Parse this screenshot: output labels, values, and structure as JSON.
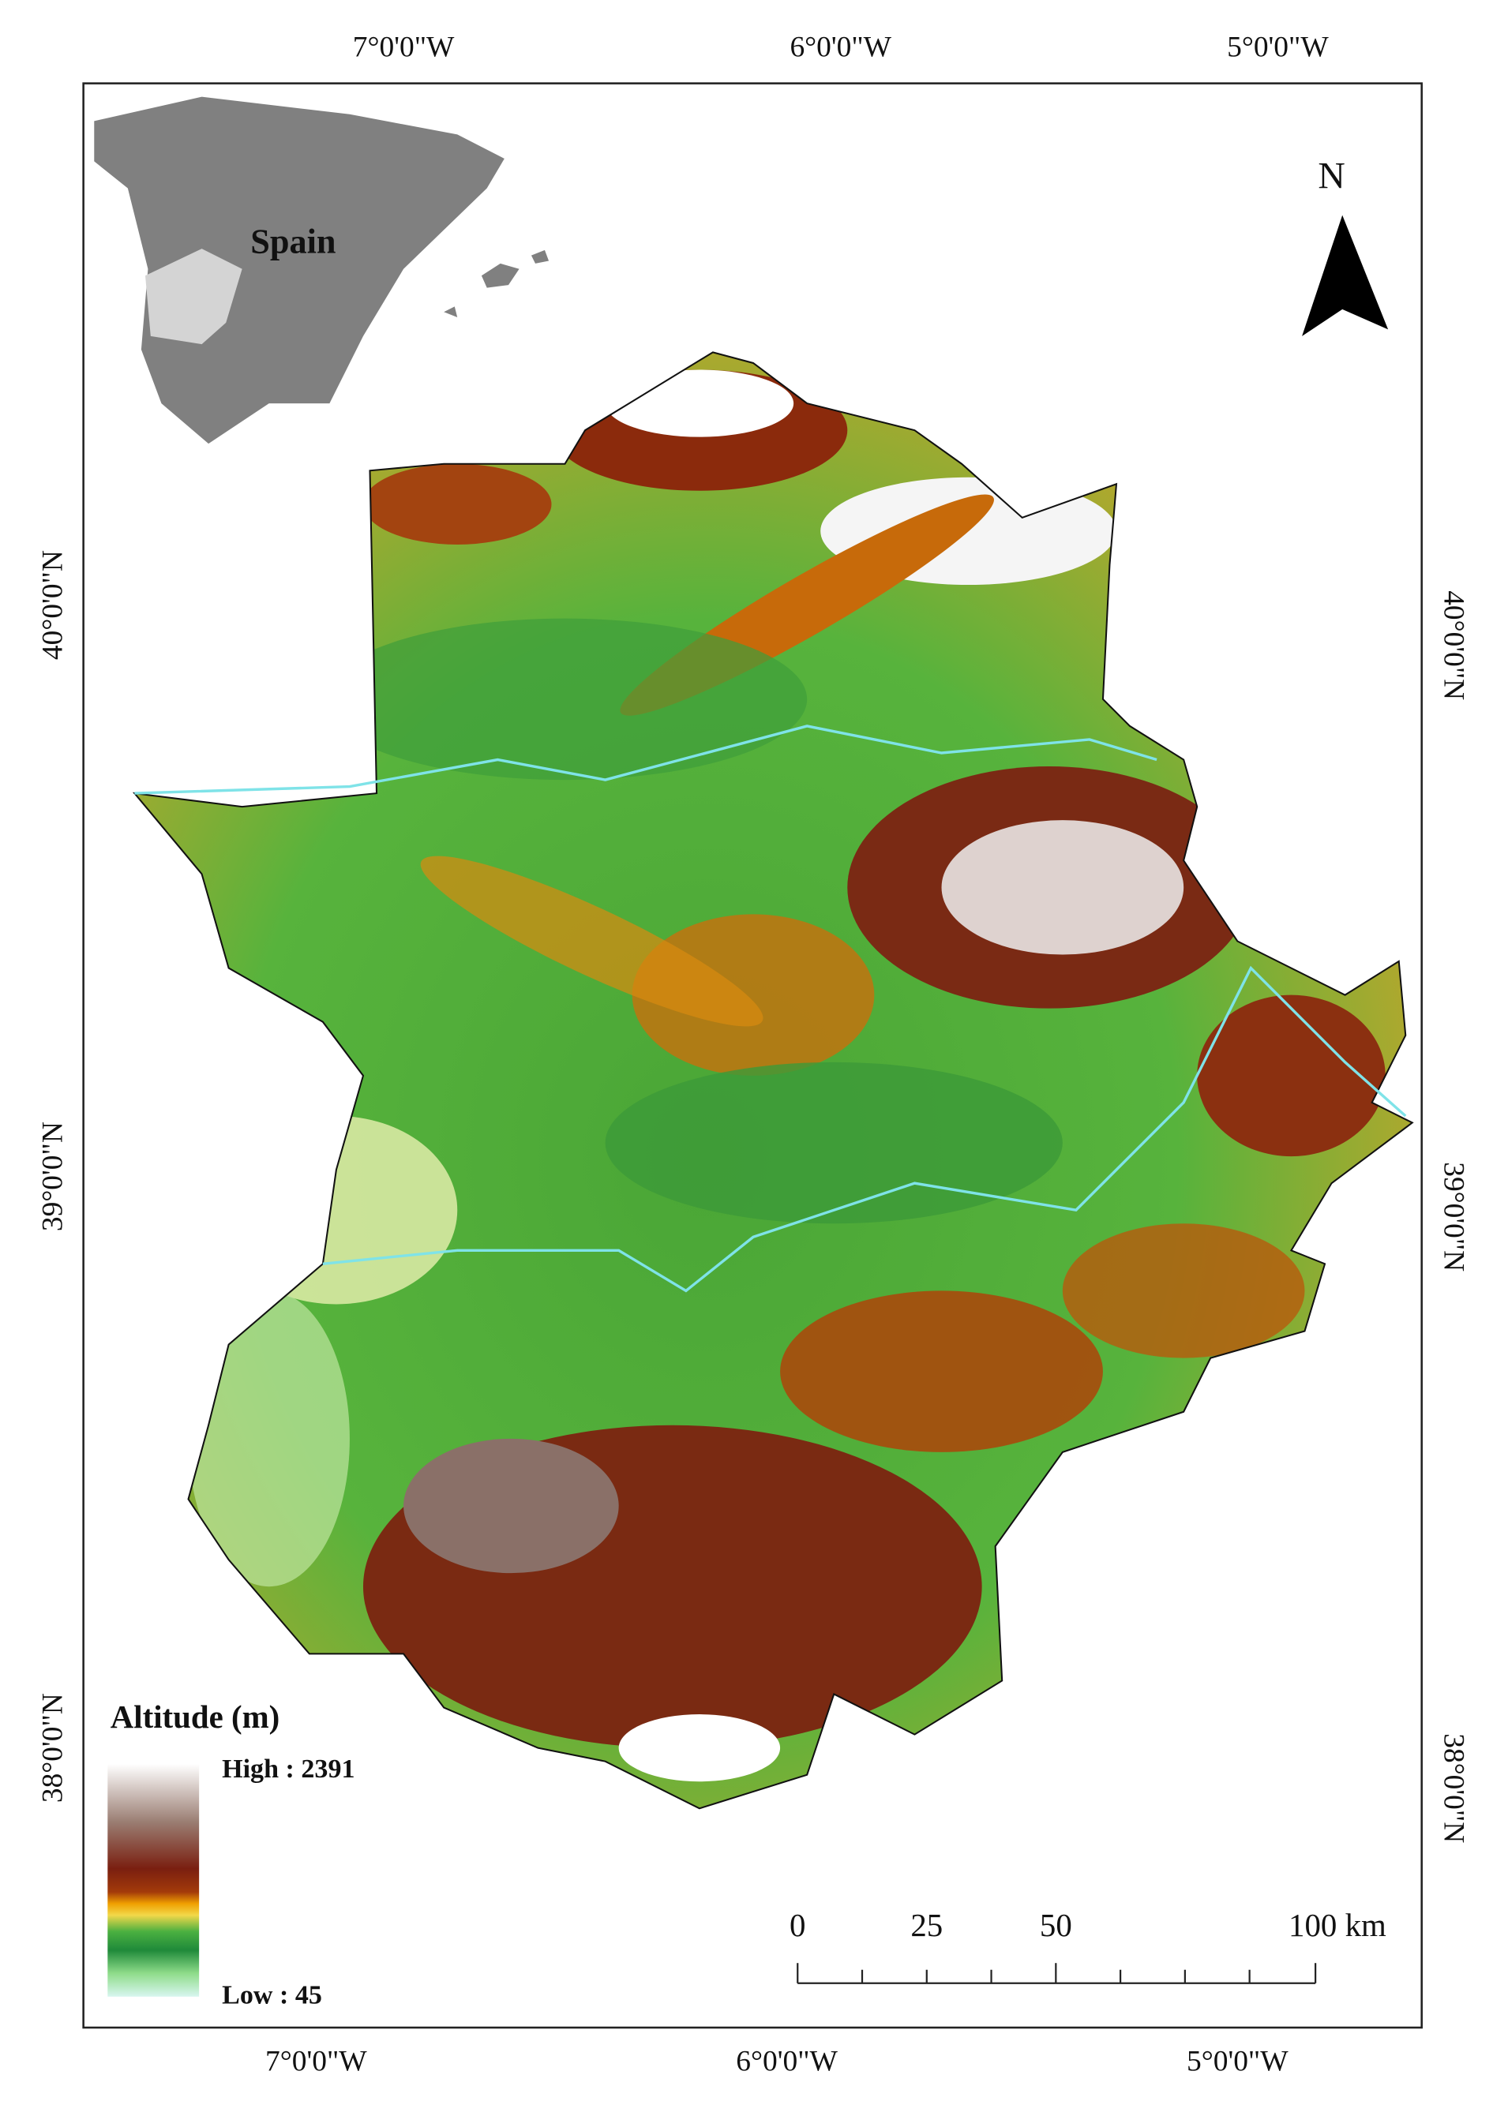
{
  "map": {
    "graticule": {
      "top": [
        "7°0'0\"W",
        "6°0'0\"W",
        "5°0'0\"W"
      ],
      "bottom": [
        "7°0'0\"W",
        "6°0'0\"W",
        "5°0'0\"W"
      ],
      "left": [
        "40°0'0\"N",
        "39°0'0\"N",
        "38°0'0\"N"
      ],
      "right": [
        "40°0'0\"N",
        "39°0'0\"N",
        "38°0'0\"N"
      ]
    },
    "inset_label": "Spain",
    "north_label": "N",
    "legend": {
      "title": "Altitude (m)",
      "high": "High : 2391",
      "low": "Low : 45"
    },
    "scale_bar": {
      "labels": [
        "0",
        "25",
        "50",
        "100 km"
      ]
    }
  }
}
